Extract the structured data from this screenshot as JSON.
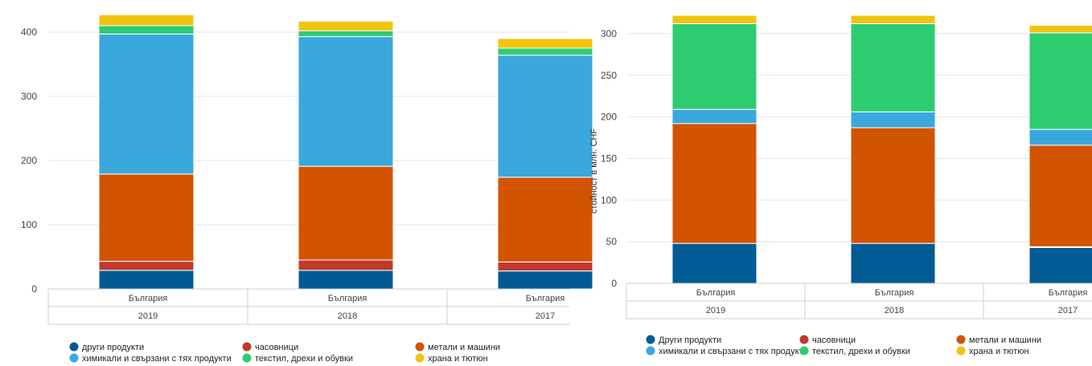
{
  "chart_data": [
    {
      "type": "bar",
      "stacked": true,
      "ylabel": "",
      "ylim": [
        0,
        430
      ],
      "yticks": [
        0,
        100,
        200,
        300,
        400
      ],
      "grid": true,
      "categories": [
        {
          "country": "България",
          "year": "2019"
        },
        {
          "country": "България",
          "year": "2018"
        },
        {
          "country": "България",
          "year": "2017"
        }
      ],
      "series": [
        {
          "name": "други продукти",
          "color": "#005b94",
          "values": [
            29,
            29,
            28
          ]
        },
        {
          "name": "часовници",
          "color": "#c0392b",
          "values": [
            14,
            16,
            14
          ]
        },
        {
          "name": "метали и машини",
          "color": "#d35400",
          "values": [
            136,
            146,
            132
          ]
        },
        {
          "name": "химикали и свързани с тях продукти",
          "color": "#3aa8dc",
          "values": [
            218,
            202,
            190
          ]
        },
        {
          "name": "текстил, дрехи и обувки",
          "color": "#2ecc71",
          "values": [
            13,
            9,
            11
          ]
        },
        {
          "name": "храна и тютюн",
          "color": "#f1c40f",
          "values": [
            17,
            15,
            15
          ]
        }
      ],
      "legend_position": "bottom"
    },
    {
      "type": "bar",
      "stacked": true,
      "ylabel": "стойност в млн. CHF",
      "ylim": [
        0,
        325
      ],
      "yticks": [
        0,
        50,
        100,
        150,
        200,
        250,
        300
      ],
      "grid": true,
      "categories": [
        {
          "country": "България",
          "year": "2019"
        },
        {
          "country": "България",
          "year": "2018"
        },
        {
          "country": "България",
          "year": "2017"
        }
      ],
      "series": [
        {
          "name": "Други продукти",
          "color": "#005b94",
          "values": [
            48,
            48,
            43
          ]
        },
        {
          "name": "часовници",
          "color": "#c0392b",
          "values": [
            0,
            0,
            1
          ]
        },
        {
          "name": "метали и машини",
          "color": "#d35400",
          "values": [
            144,
            139,
            122
          ]
        },
        {
          "name": "химикали и свързани с тях продукти",
          "color": "#3aa8dc",
          "values": [
            17,
            19,
            19
          ]
        },
        {
          "name": "текстил, дрехи и обувки",
          "color": "#2ecc71",
          "values": [
            103,
            106,
            116
          ]
        },
        {
          "name": "храна и тютюн",
          "color": "#f1c40f",
          "values": [
            10,
            10,
            9
          ]
        }
      ],
      "legend_position": "bottom"
    }
  ]
}
